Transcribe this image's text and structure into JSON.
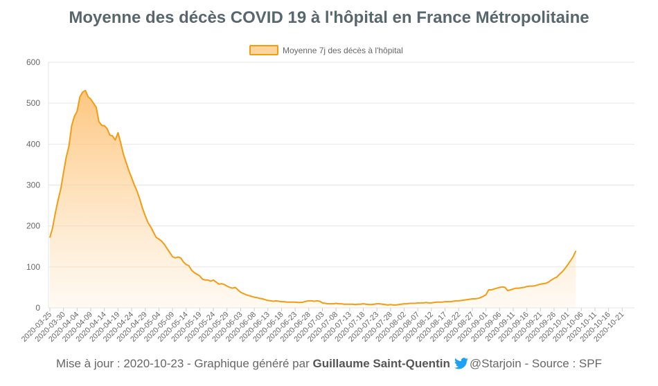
{
  "chart_data": {
    "type": "area",
    "title": "Moyenne des décès COVID 19 à l'hôpital en France Métropolitaine",
    "series": [
      {
        "name": "Moyenne 7j des décès à l'hôpital",
        "line_color": "#f39c12",
        "fill_color": "#fdd49a"
      }
    ],
    "ylim": [
      0,
      600
    ],
    "yticks": [
      0,
      100,
      200,
      300,
      400,
      500,
      600
    ],
    "grid": true,
    "legend_position": "top",
    "x_tick_labels": [
      "2020-03-25",
      "2020-03-30",
      "2020-04-04",
      "2020-04-09",
      "2020-04-14",
      "2020-04-19",
      "2020-04-24",
      "2020-04-29",
      "2020-05-04",
      "2020-05-09",
      "2020-05-14",
      "2020-05-19",
      "2020-05-24",
      "2020-05-29",
      "2020-06-03",
      "2020-06-08",
      "2020-06-13",
      "2020-06-18",
      "2020-06-23",
      "2020-06-28",
      "2020-07-03",
      "2020-07-08",
      "2020-07-13",
      "2020-07-18",
      "2020-07-23",
      "2020-07-28",
      "2020-08-02",
      "2020-08-07",
      "2020-08-12",
      "2020-08-17",
      "2020-08-22",
      "2020-08-27",
      "2020-09-01",
      "2020-09-06",
      "2020-09-11",
      "2020-09-16",
      "2020-09-21",
      "2020-09-26",
      "2020-10-01",
      "2020-10-06",
      "2020-10-11",
      "2020-10-16",
      "2020-10-21"
    ],
    "points": [
      [
        "2020-03-25",
        172
      ],
      [
        "2020-03-26",
        195
      ],
      [
        "2020-03-27",
        232
      ],
      [
        "2020-03-28",
        263
      ],
      [
        "2020-03-29",
        290
      ],
      [
        "2020-03-30",
        330
      ],
      [
        "2020-03-31",
        368
      ],
      [
        "2020-04-01",
        395
      ],
      [
        "2020-04-02",
        445
      ],
      [
        "2020-04-03",
        468
      ],
      [
        "2020-04-04",
        480
      ],
      [
        "2020-04-05",
        515
      ],
      [
        "2020-04-06",
        527
      ],
      [
        "2020-04-07",
        531
      ],
      [
        "2020-04-08",
        516
      ],
      [
        "2020-04-09",
        510
      ],
      [
        "2020-04-10",
        500
      ],
      [
        "2020-04-11",
        490
      ],
      [
        "2020-04-12",
        455
      ],
      [
        "2020-04-13",
        446
      ],
      [
        "2020-04-14",
        445
      ],
      [
        "2020-04-15",
        438
      ],
      [
        "2020-04-16",
        422
      ],
      [
        "2020-04-17",
        420
      ],
      [
        "2020-04-18",
        410
      ],
      [
        "2020-04-19",
        428
      ],
      [
        "2020-04-20",
        403
      ],
      [
        "2020-04-21",
        375
      ],
      [
        "2020-04-22",
        355
      ],
      [
        "2020-04-23",
        335
      ],
      [
        "2020-04-24",
        318
      ],
      [
        "2020-04-25",
        300
      ],
      [
        "2020-04-26",
        285
      ],
      [
        "2020-04-27",
        265
      ],
      [
        "2020-04-28",
        243
      ],
      [
        "2020-04-29",
        225
      ],
      [
        "2020-04-30",
        208
      ],
      [
        "2020-05-01",
        198
      ],
      [
        "2020-05-02",
        185
      ],
      [
        "2020-05-03",
        172
      ],
      [
        "2020-05-04",
        168
      ],
      [
        "2020-05-05",
        163
      ],
      [
        "2020-05-06",
        155
      ],
      [
        "2020-05-07",
        145
      ],
      [
        "2020-05-08",
        135
      ],
      [
        "2020-05-09",
        125
      ],
      [
        "2020-05-10",
        122
      ],
      [
        "2020-05-11",
        124
      ],
      [
        "2020-05-12",
        122
      ],
      [
        "2020-05-13",
        112
      ],
      [
        "2020-05-14",
        106
      ],
      [
        "2020-05-15",
        103
      ],
      [
        "2020-05-16",
        92
      ],
      [
        "2020-05-17",
        86
      ],
      [
        "2020-05-18",
        82
      ],
      [
        "2020-05-19",
        78
      ],
      [
        "2020-05-20",
        70
      ],
      [
        "2020-05-21",
        68
      ],
      [
        "2020-05-22",
        68
      ],
      [
        "2020-05-23",
        65
      ],
      [
        "2020-05-24",
        68
      ],
      [
        "2020-05-25",
        63
      ],
      [
        "2020-05-26",
        58
      ],
      [
        "2020-05-27",
        59
      ],
      [
        "2020-05-28",
        57
      ],
      [
        "2020-05-29",
        53
      ],
      [
        "2020-05-30",
        50
      ],
      [
        "2020-05-31",
        48
      ],
      [
        "2020-06-01",
        50
      ],
      [
        "2020-06-02",
        44
      ],
      [
        "2020-06-03",
        38
      ],
      [
        "2020-06-04",
        35
      ],
      [
        "2020-06-05",
        32
      ],
      [
        "2020-06-06",
        30
      ],
      [
        "2020-06-07",
        28
      ],
      [
        "2020-06-08",
        26
      ],
      [
        "2020-06-09",
        25
      ],
      [
        "2020-06-10",
        23
      ],
      [
        "2020-06-11",
        22
      ],
      [
        "2020-06-12",
        20
      ],
      [
        "2020-06-13",
        18
      ],
      [
        "2020-06-14",
        17
      ],
      [
        "2020-06-15",
        16
      ],
      [
        "2020-06-16",
        17
      ],
      [
        "2020-06-17",
        16
      ],
      [
        "2020-06-18",
        15
      ],
      [
        "2020-06-19",
        15
      ],
      [
        "2020-06-20",
        14
      ],
      [
        "2020-06-21",
        14
      ],
      [
        "2020-06-22",
        14
      ],
      [
        "2020-06-23",
        14
      ],
      [
        "2020-06-24",
        13
      ],
      [
        "2020-06-25",
        13
      ],
      [
        "2020-06-26",
        14
      ],
      [
        "2020-06-27",
        16
      ],
      [
        "2020-06-28",
        17
      ],
      [
        "2020-06-29",
        17
      ],
      [
        "2020-06-30",
        16
      ],
      [
        "2020-07-01",
        17
      ],
      [
        "2020-07-02",
        16
      ],
      [
        "2020-07-03",
        12
      ],
      [
        "2020-07-04",
        11
      ],
      [
        "2020-07-05",
        10
      ],
      [
        "2020-07-06",
        10
      ],
      [
        "2020-07-07",
        10
      ],
      [
        "2020-07-08",
        11
      ],
      [
        "2020-07-09",
        10
      ],
      [
        "2020-07-10",
        10
      ],
      [
        "2020-07-11",
        9
      ],
      [
        "2020-07-12",
        9
      ],
      [
        "2020-07-13",
        9
      ],
      [
        "2020-07-14",
        9
      ],
      [
        "2020-07-15",
        8
      ],
      [
        "2020-07-16",
        9
      ],
      [
        "2020-07-17",
        9
      ],
      [
        "2020-07-18",
        10
      ],
      [
        "2020-07-19",
        9
      ],
      [
        "2020-07-20",
        8
      ],
      [
        "2020-07-21",
        8
      ],
      [
        "2020-07-22",
        9
      ],
      [
        "2020-07-23",
        10
      ],
      [
        "2020-07-24",
        10
      ],
      [
        "2020-07-25",
        9
      ],
      [
        "2020-07-26",
        8
      ],
      [
        "2020-07-27",
        7
      ],
      [
        "2020-07-28",
        8
      ],
      [
        "2020-07-29",
        7
      ],
      [
        "2020-07-30",
        7
      ],
      [
        "2020-07-31",
        8
      ],
      [
        "2020-08-01",
        9
      ],
      [
        "2020-08-02",
        10
      ],
      [
        "2020-08-03",
        10
      ],
      [
        "2020-08-04",
        11
      ],
      [
        "2020-08-05",
        11
      ],
      [
        "2020-08-06",
        11
      ],
      [
        "2020-08-07",
        12
      ],
      [
        "2020-08-08",
        12
      ],
      [
        "2020-08-09",
        12
      ],
      [
        "2020-08-10",
        13
      ],
      [
        "2020-08-11",
        12
      ],
      [
        "2020-08-12",
        12
      ],
      [
        "2020-08-13",
        13
      ],
      [
        "2020-08-14",
        14
      ],
      [
        "2020-08-15",
        14
      ],
      [
        "2020-08-16",
        14
      ],
      [
        "2020-08-17",
        15
      ],
      [
        "2020-08-18",
        15
      ],
      [
        "2020-08-19",
        15
      ],
      [
        "2020-08-20",
        16
      ],
      [
        "2020-08-21",
        17
      ],
      [
        "2020-08-22",
        17
      ],
      [
        "2020-08-23",
        18
      ],
      [
        "2020-08-24",
        19
      ],
      [
        "2020-08-25",
        20
      ],
      [
        "2020-08-26",
        21
      ],
      [
        "2020-08-27",
        22
      ],
      [
        "2020-08-28",
        22
      ],
      [
        "2020-08-29",
        23
      ],
      [
        "2020-08-30",
        25
      ],
      [
        "2020-08-31",
        28
      ],
      [
        "2020-09-01",
        32
      ],
      [
        "2020-09-02",
        44
      ],
      [
        "2020-09-03",
        44
      ],
      [
        "2020-09-04",
        46
      ],
      [
        "2020-09-05",
        48
      ],
      [
        "2020-09-06",
        50
      ],
      [
        "2020-09-07",
        51
      ],
      [
        "2020-09-08",
        50
      ],
      [
        "2020-09-09",
        42
      ],
      [
        "2020-09-10",
        44
      ],
      [
        "2020-09-11",
        46
      ],
      [
        "2020-09-12",
        48
      ],
      [
        "2020-09-13",
        48
      ],
      [
        "2020-09-14",
        49
      ],
      [
        "2020-09-15",
        50
      ],
      [
        "2020-09-16",
        52
      ],
      [
        "2020-09-17",
        53
      ],
      [
        "2020-09-18",
        53
      ],
      [
        "2020-09-19",
        54
      ],
      [
        "2020-09-20",
        56
      ],
      [
        "2020-09-21",
        58
      ],
      [
        "2020-09-22",
        59
      ],
      [
        "2020-09-23",
        60
      ],
      [
        "2020-09-24",
        63
      ],
      [
        "2020-09-25",
        68
      ],
      [
        "2020-09-26",
        72
      ],
      [
        "2020-09-27",
        75
      ],
      [
        "2020-09-28",
        82
      ],
      [
        "2020-09-29",
        88
      ],
      [
        "2020-09-30",
        96
      ],
      [
        "2020-10-01",
        105
      ],
      [
        "2020-10-02",
        115
      ],
      [
        "2020-10-03",
        125
      ],
      [
        "2020-10-04",
        139
      ]
    ],
    "ytick_labels": [
      "0",
      "100",
      "200",
      "300",
      "400",
      "500",
      "600"
    ]
  },
  "footer": {
    "prefix": "Mise à jour : 2020-10-23 - Graphique généré par ",
    "author": "Guillaume Saint-Quentin",
    "twitter_icon": "twitter-icon",
    "handle": "@Starjoin",
    "suffix": " - Source : SPF"
  }
}
